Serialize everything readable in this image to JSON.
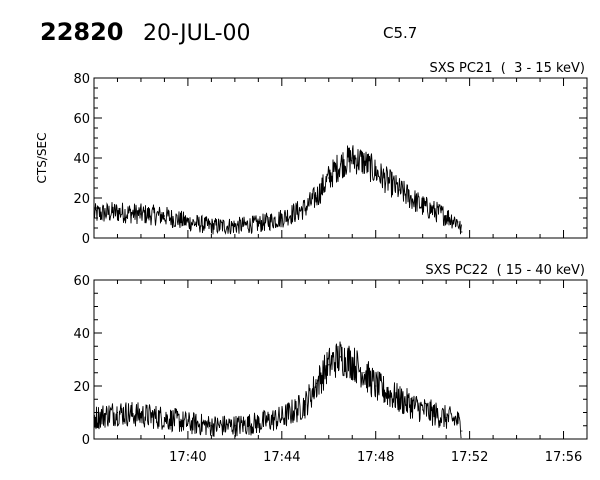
{
  "header": {
    "event_id": "22820",
    "date": "20-JUL-00",
    "flare_class": "C5.7"
  },
  "chart_data": [
    {
      "type": "line",
      "title": "SXS PC21  (  3 - 15 keV)",
      "ylabel": "CTS/SEC",
      "xlabel": "",
      "ylim": [
        0,
        80
      ],
      "yticks": [
        0,
        20,
        40,
        60,
        80
      ],
      "xlim": [
        "17:36:00",
        "17:57:00"
      ],
      "xticks": [
        "17:40",
        "17:44",
        "17:48",
        "17:52",
        "17:56"
      ],
      "grid": false,
      "series": [
        {
          "x": [
            "17:36:00",
            "17:37:00",
            "17:38:00",
            "17:39:00",
            "17:40:00",
            "17:41:00",
            "17:42:00",
            "17:43:00",
            "17:44:00",
            "17:45:00",
            "17:45:30",
            "17:46:00",
            "17:46:30",
            "17:47:00",
            "17:47:30",
            "17:48:00",
            "17:49:00",
            "17:50:00",
            "17:51:00",
            "17:51:30",
            "17:51:40"
          ],
          "values": [
            12,
            13,
            12,
            11,
            8,
            6,
            6,
            7,
            10,
            15,
            21,
            30,
            37,
            40,
            38,
            33,
            24,
            16,
            11,
            8,
            3
          ]
        }
      ]
    },
    {
      "type": "line",
      "title": "SXS PC22  ( 15 - 40 keV)",
      "ylabel": "",
      "xlabel": "",
      "ylim": [
        0,
        60
      ],
      "yticks": [
        0,
        20,
        40,
        60
      ],
      "xlim": [
        "17:36:00",
        "17:57:00"
      ],
      "xticks": [
        "17:40",
        "17:44",
        "17:48",
        "17:52",
        "17:56"
      ],
      "grid": false,
      "series": [
        {
          "x": [
            "17:36:00",
            "17:37:00",
            "17:38:00",
            "17:39:00",
            "17:40:00",
            "17:41:00",
            "17:42:00",
            "17:43:00",
            "17:44:00",
            "17:45:00",
            "17:45:30",
            "17:46:00",
            "17:46:30",
            "17:47:00",
            "17:47:30",
            "17:48:00",
            "17:49:00",
            "17:50:00",
            "17:51:00",
            "17:51:30",
            "17:51:40"
          ],
          "values": [
            8,
            10,
            9,
            8,
            6,
            5,
            5,
            6,
            8,
            13,
            21,
            28,
            31,
            29,
            25,
            20,
            15,
            11,
            8,
            7,
            3
          ]
        }
      ]
    }
  ]
}
